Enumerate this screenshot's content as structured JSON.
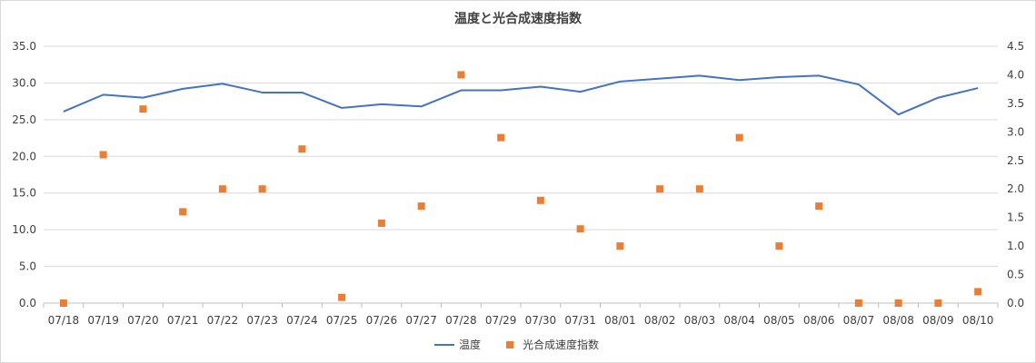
{
  "chart_data": {
    "type": "line",
    "title": "温度と光合成速度指数",
    "xlabel": "",
    "ylabel": "",
    "y2label": "",
    "categories": [
      "07/18",
      "07/19",
      "07/20",
      "07/21",
      "07/22",
      "07/23",
      "07/24",
      "07/25",
      "07/26",
      "07/27",
      "07/28",
      "07/29",
      "07/30",
      "07/31",
      "08/01",
      "08/02",
      "08/03",
      "08/04",
      "08/05",
      "08/06",
      "08/07",
      "08/08",
      "08/09",
      "08/10"
    ],
    "ylim": [
      0,
      35
    ],
    "y_ticks": [
      "0.0",
      "5.0",
      "10.0",
      "15.0",
      "20.0",
      "25.0",
      "30.0",
      "35.0"
    ],
    "y2lim": [
      0,
      4.5
    ],
    "y2_ticks": [
      "0.0",
      "0.5",
      "1.0",
      "1.5",
      "2.0",
      "2.5",
      "3.0",
      "3.5",
      "4.0",
      "4.5"
    ],
    "grid": "horizontal",
    "legend_position": "bottom",
    "series": [
      {
        "name": "温度",
        "type": "line",
        "axis": "left",
        "color": "#4472c4",
        "values": [
          26.1,
          28.4,
          28.0,
          29.2,
          29.9,
          28.7,
          28.7,
          26.6,
          27.1,
          26.8,
          29.0,
          29.0,
          29.5,
          28.8,
          30.2,
          30.6,
          31.0,
          30.4,
          30.8,
          31.0,
          29.8,
          25.7,
          28.0,
          29.3
        ]
      },
      {
        "name": "光合成速度指数",
        "type": "scatter",
        "axis": "right",
        "color": "#ed7d31",
        "values": [
          0.0,
          2.6,
          3.4,
          1.6,
          2.0,
          2.0,
          2.7,
          0.1,
          1.4,
          1.7,
          4.0,
          2.9,
          1.8,
          1.3,
          1.0,
          2.0,
          2.0,
          2.9,
          1.0,
          1.7,
          0.0,
          0.0,
          0.0,
          0.2
        ]
      }
    ]
  }
}
